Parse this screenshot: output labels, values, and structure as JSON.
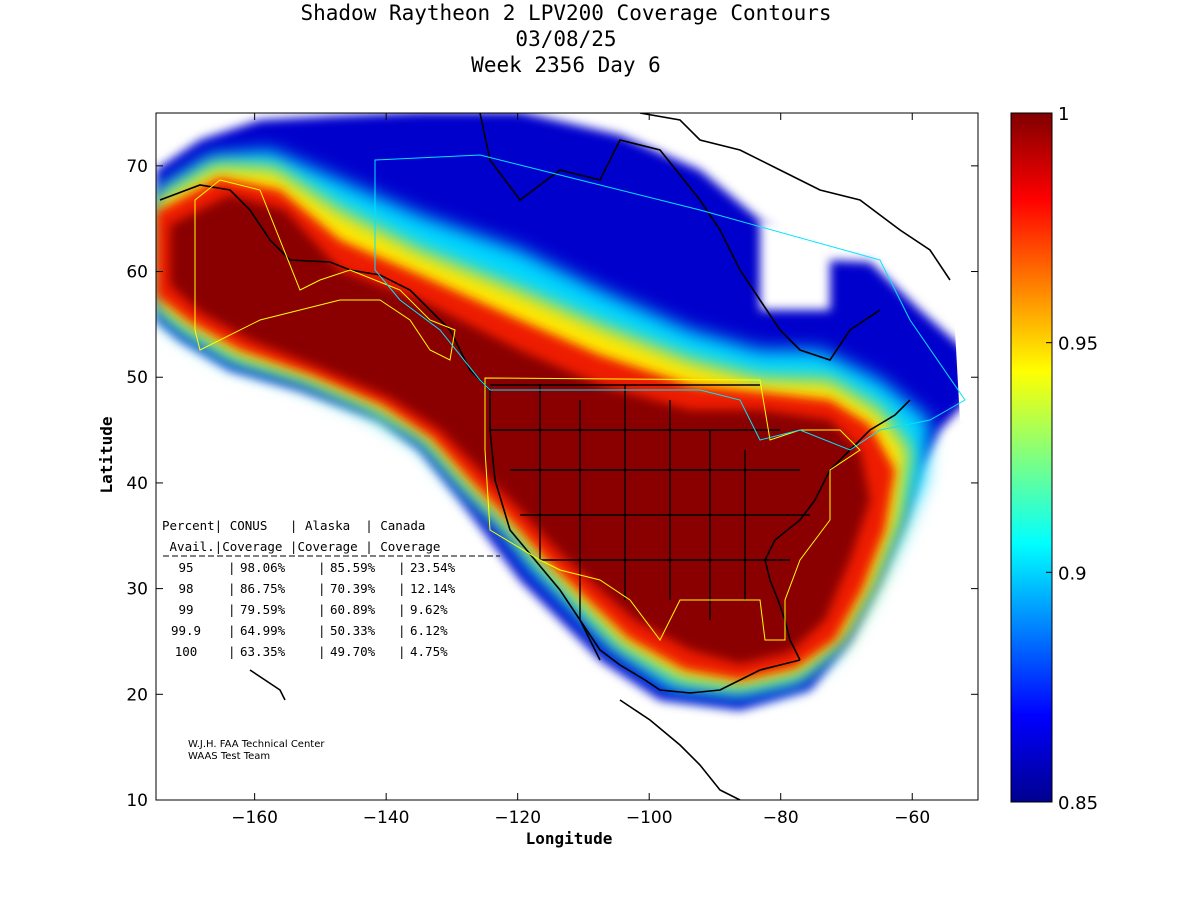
{
  "title": {
    "line1": "Shadow Raytheon 2 LPV200 Coverage Contours",
    "line2": "03/08/25",
    "line3": "Week 2356 Day 6"
  },
  "axes": {
    "xlabel": "Longitude",
    "ylabel": "Latitude",
    "xlim": [
      -175,
      -50
    ],
    "ylim": [
      10,
      75
    ],
    "xticks": [
      -160,
      -140,
      -120,
      -100,
      -80,
      -60
    ],
    "yticks": [
      10,
      20,
      30,
      40,
      50,
      60,
      70
    ]
  },
  "colorbar": {
    "min": 0.85,
    "max": 1,
    "ticks": [
      "1",
      "0.95",
      "0.9",
      "0.85"
    ],
    "tick_values": [
      1,
      0.95,
      0.9,
      0.85
    ],
    "colormap": "jet",
    "colors": [
      "#00008f",
      "#0000ff",
      "#00ffff",
      "#ffff00",
      "#ff0000",
      "#800000"
    ]
  },
  "coverage_table": {
    "header1": [
      "Percent|",
      "CONUS",
      "| Alaska",
      "| Canada"
    ],
    "header2": [
      "Avail.|Coverage",
      "|Coverage",
      "| Coverage"
    ],
    "header_line1": "Percent| CONUS   | Alaska  | Canada",
    "header_line2": " Avail.|Coverage |Coverage | Coverage",
    "rows": [
      {
        "percent": "95",
        "conus": "98.06%",
        "alaska": "85.59%",
        "canada": "23.54%"
      },
      {
        "percent": "98",
        "conus": "86.75%",
        "alaska": "70.39%",
        "canada": "12.14%"
      },
      {
        "percent": "99",
        "conus": "79.59%",
        "alaska": "60.89%",
        "canada": "9.62%"
      },
      {
        "percent": "99.9",
        "conus": "64.99%",
        "alaska": "50.33%",
        "canada": "6.12%"
      },
      {
        "percent": "100",
        "conus": "63.35%",
        "alaska": "49.70%",
        "canada": "4.75%"
      }
    ]
  },
  "credit": {
    "line1": "W.J.H. FAA Technical Center",
    "line2": "WAAS Test Team"
  }
}
